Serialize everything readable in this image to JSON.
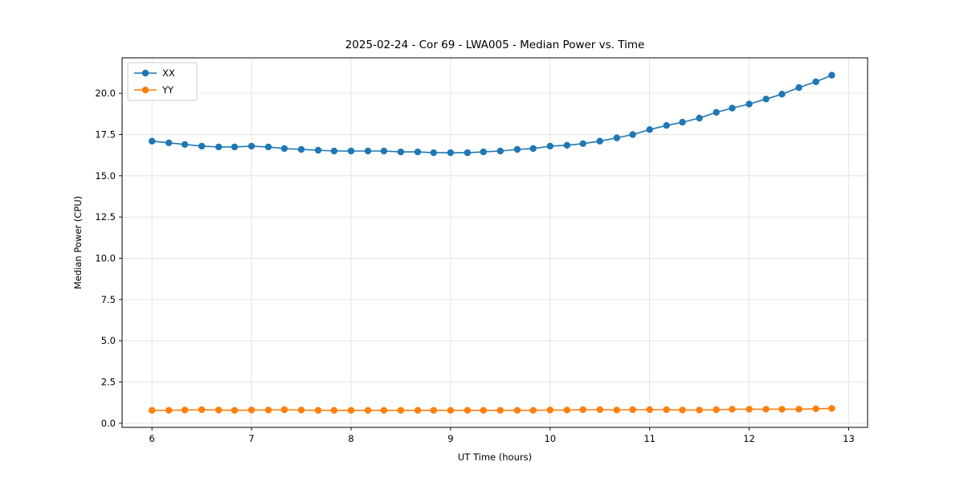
{
  "chart_data": {
    "type": "line",
    "title": "2025-02-24 - Cor 69 - LWA005 - Median Power vs. Time",
    "xlabel": "UT Time (hours)",
    "ylabel": "Median Power (CPU)",
    "xlim": [
      5.7,
      13.19
    ],
    "ylim": [
      -0.25,
      22.15
    ],
    "xticks": [
      6,
      7,
      8,
      9,
      10,
      11,
      12,
      13
    ],
    "yticks": [
      0.0,
      2.5,
      5.0,
      7.5,
      10.0,
      12.5,
      15.0,
      17.5,
      20.0
    ],
    "grid": true,
    "legend_position": "upper left",
    "x": [
      6.0,
      6.17,
      6.33,
      6.5,
      6.67,
      6.83,
      7.0,
      7.17,
      7.33,
      7.5,
      7.67,
      7.83,
      8.0,
      8.17,
      8.33,
      8.5,
      8.67,
      8.83,
      9.0,
      9.17,
      9.33,
      9.5,
      9.67,
      9.83,
      10.0,
      10.17,
      10.33,
      10.5,
      10.67,
      10.83,
      11.0,
      11.17,
      11.33,
      11.5,
      11.67,
      11.83,
      12.0,
      12.17,
      12.33,
      12.5,
      12.67,
      12.83
    ],
    "series": [
      {
        "name": "XX",
        "color": "#1f77b4",
        "values": [
          17.1,
          17.0,
          16.9,
          16.8,
          16.75,
          16.75,
          16.8,
          16.75,
          16.65,
          16.6,
          16.55,
          16.5,
          16.5,
          16.5,
          16.5,
          16.45,
          16.45,
          16.4,
          16.4,
          16.4,
          16.45,
          16.5,
          16.6,
          16.65,
          16.8,
          16.85,
          16.95,
          17.1,
          17.3,
          17.5,
          17.8,
          18.05,
          18.25,
          18.5,
          18.85,
          19.1,
          19.35,
          19.65,
          19.95,
          20.35,
          20.7,
          21.1
        ]
      },
      {
        "name": "YY",
        "color": "#ff7f0e",
        "values": [
          0.78,
          0.78,
          0.8,
          0.82,
          0.8,
          0.78,
          0.8,
          0.8,
          0.82,
          0.8,
          0.78,
          0.78,
          0.78,
          0.78,
          0.78,
          0.78,
          0.78,
          0.78,
          0.78,
          0.78,
          0.78,
          0.78,
          0.78,
          0.78,
          0.8,
          0.8,
          0.82,
          0.82,
          0.8,
          0.82,
          0.82,
          0.82,
          0.8,
          0.8,
          0.82,
          0.85,
          0.85,
          0.85,
          0.85,
          0.85,
          0.88,
          0.9
        ]
      }
    ],
    "styles": {
      "grid_color": "#dddddd",
      "axis_color": "#000000",
      "legend_border_color": "#cccccc",
      "marker_radius": 4.2,
      "line_width": 1.6
    }
  }
}
